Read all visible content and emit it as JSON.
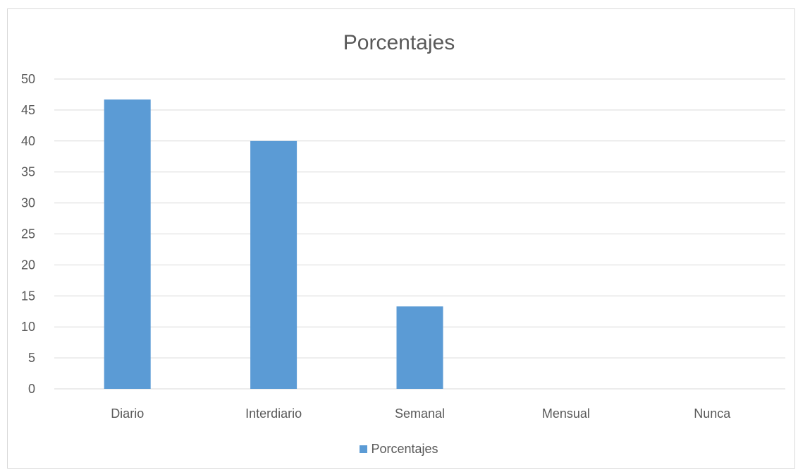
{
  "chart_data": {
    "type": "bar",
    "title": "Porcentajes",
    "categories": [
      "Diario",
      "Interdiario",
      "Semanal",
      "Mensual",
      "Nunca"
    ],
    "series": [
      {
        "name": "Porcentajes",
        "values": [
          46.7,
          40,
          13.3,
          0,
          0
        ],
        "color": "#5b9bd5"
      }
    ],
    "ylim": [
      0,
      50
    ],
    "yticks": [
      0,
      5,
      10,
      15,
      20,
      25,
      30,
      35,
      40,
      45,
      50
    ],
    "grid": true,
    "legend_position": "bottom"
  }
}
